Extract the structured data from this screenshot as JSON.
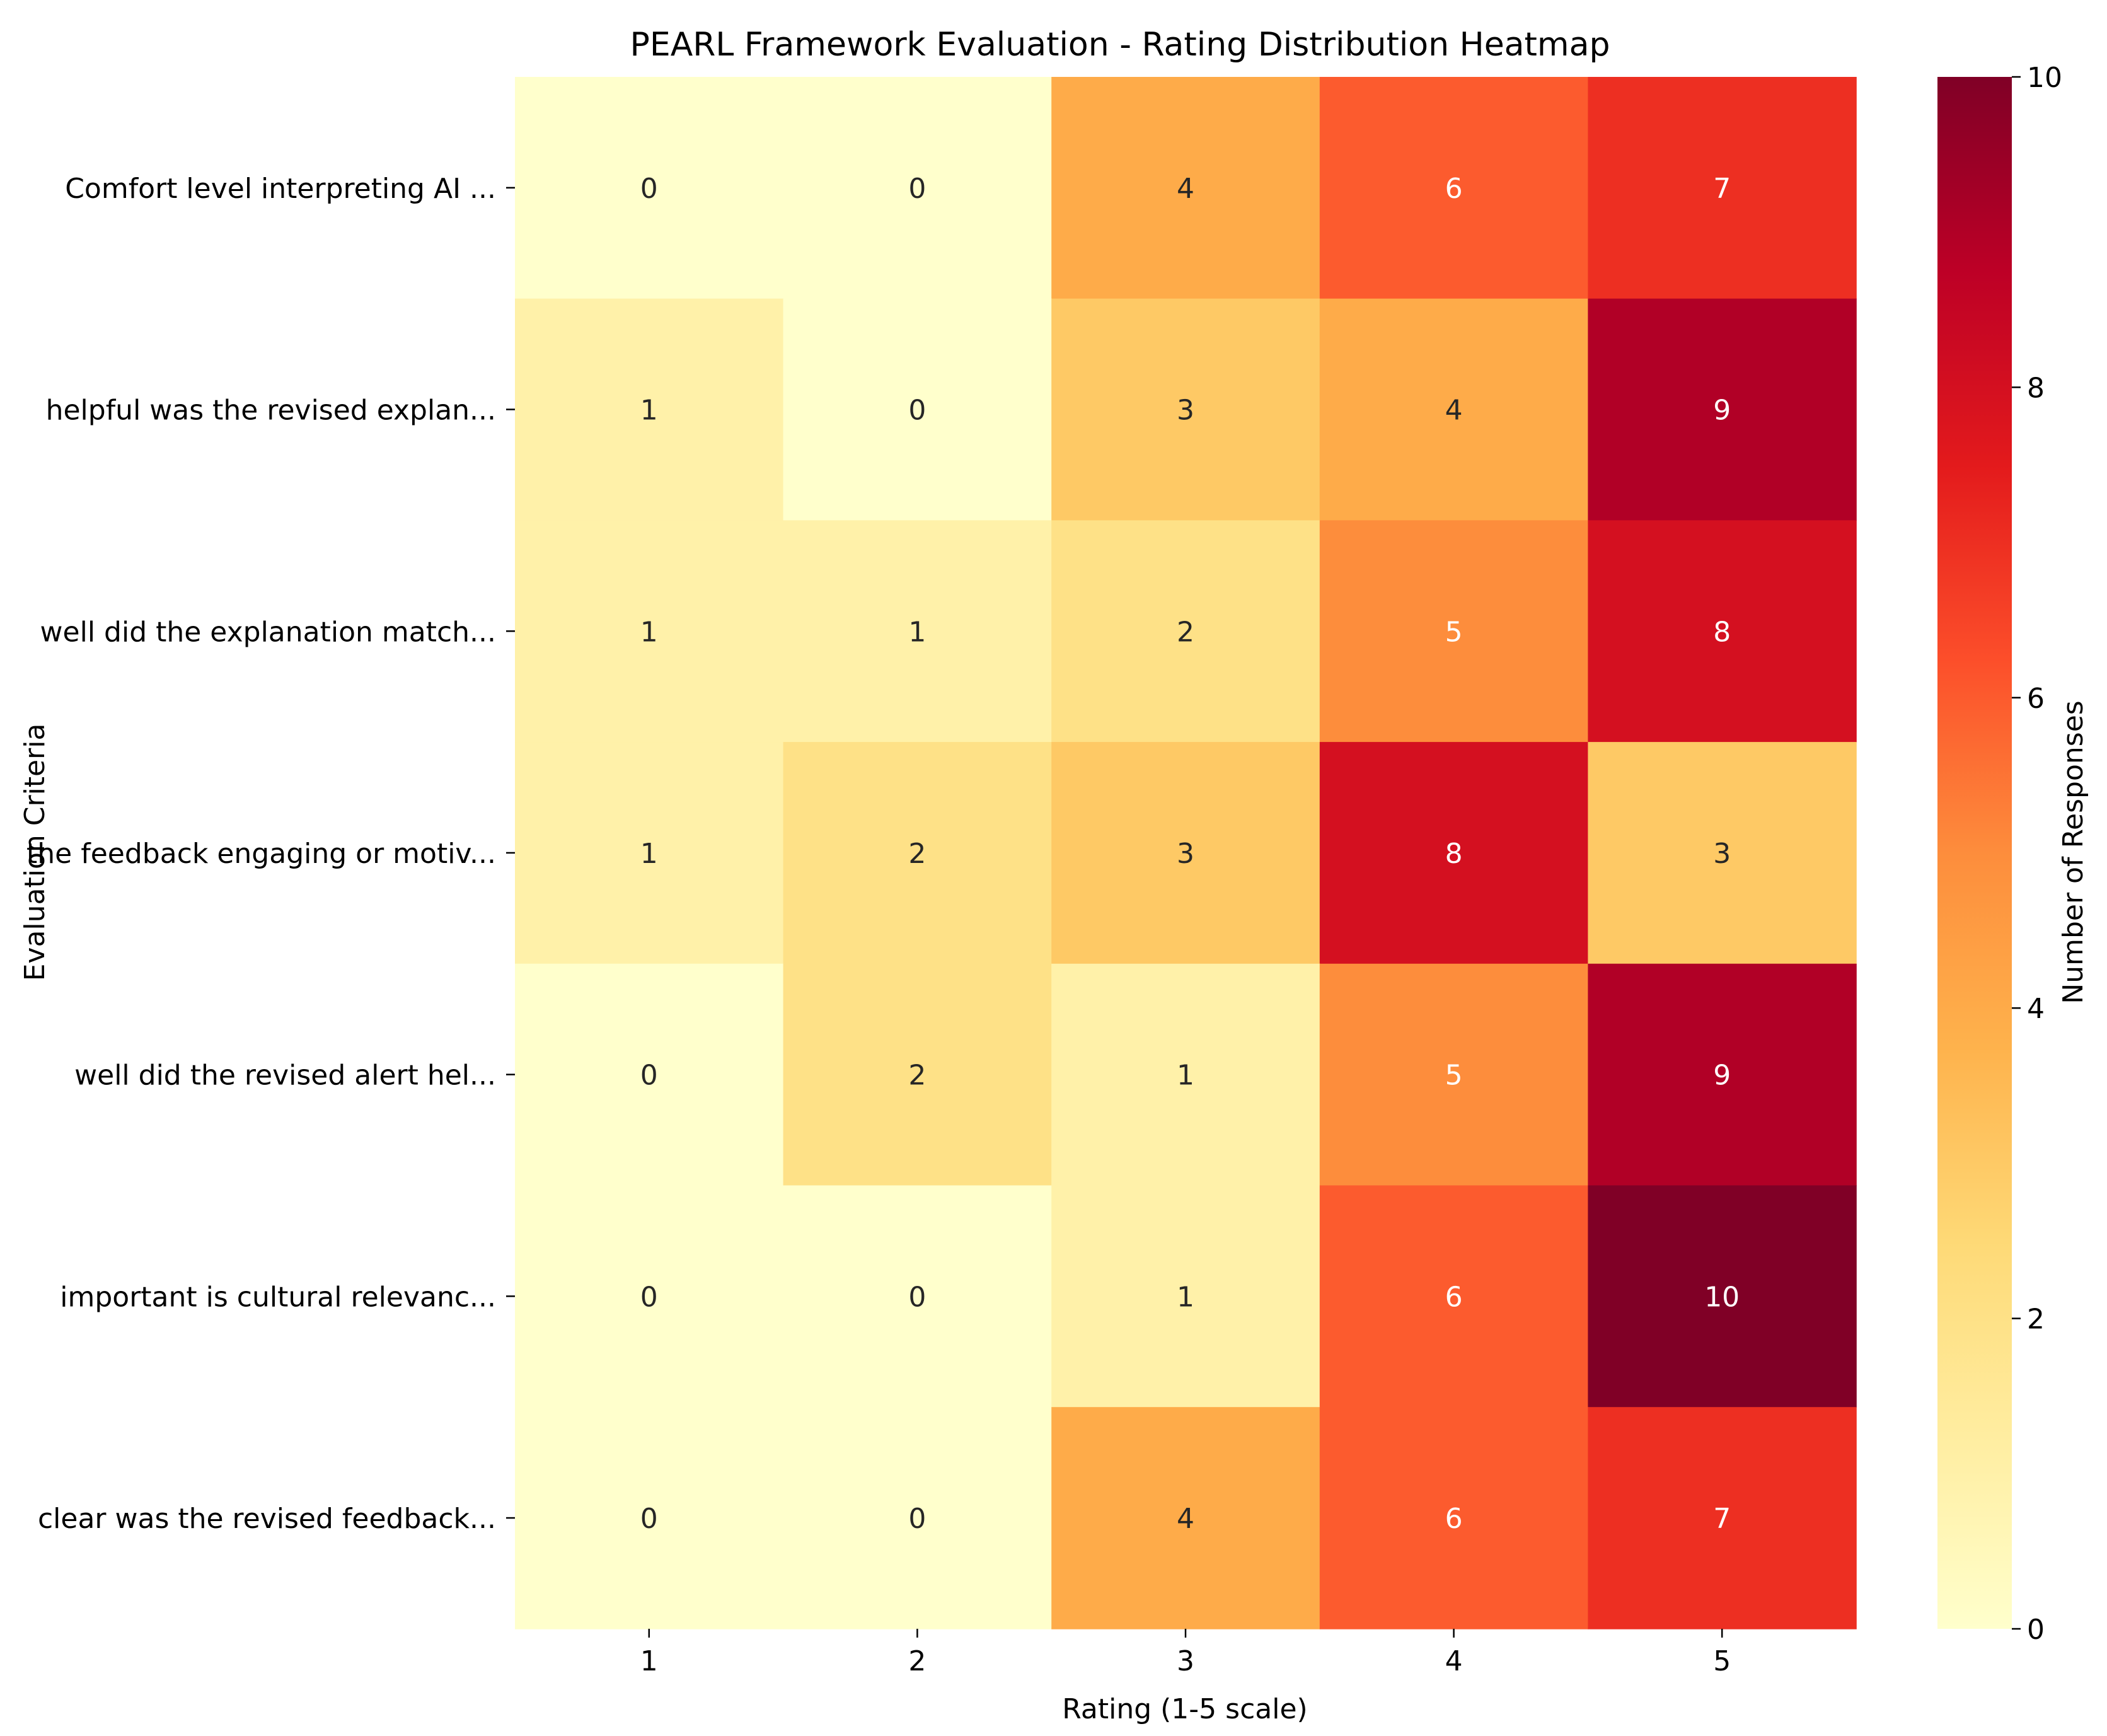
{
  "chart_data": {
    "type": "heatmap",
    "title": "PEARL Framework Evaluation - Rating Distribution Heatmap",
    "xlabel": "Rating (1-5 scale)",
    "ylabel": "Evaluation Criteria",
    "x_categories": [
      "1",
      "2",
      "3",
      "4",
      "5"
    ],
    "y_categories": [
      "Comfort level interpreting AI ...",
      "helpful was the revised explan...",
      "well did the explanation match...",
      "the feedback engaging or motiv...",
      "well did the revised alert hel...",
      "important is cultural relevanc...",
      "clear was the revised feedback..."
    ],
    "values": [
      [
        0,
        0,
        4,
        6,
        7
      ],
      [
        1,
        0,
        3,
        4,
        9
      ],
      [
        1,
        1,
        2,
        5,
        8
      ],
      [
        1,
        2,
        3,
        8,
        3
      ],
      [
        0,
        2,
        1,
        5,
        9
      ],
      [
        0,
        0,
        1,
        6,
        10
      ],
      [
        0,
        0,
        4,
        6,
        7
      ]
    ],
    "colorbar": {
      "label": "Number of Responses",
      "range": [
        0,
        10
      ],
      "ticks": [
        "0",
        "2",
        "4",
        "6",
        "8",
        "10"
      ],
      "colormap": "YlOrRd"
    },
    "grid": false
  }
}
